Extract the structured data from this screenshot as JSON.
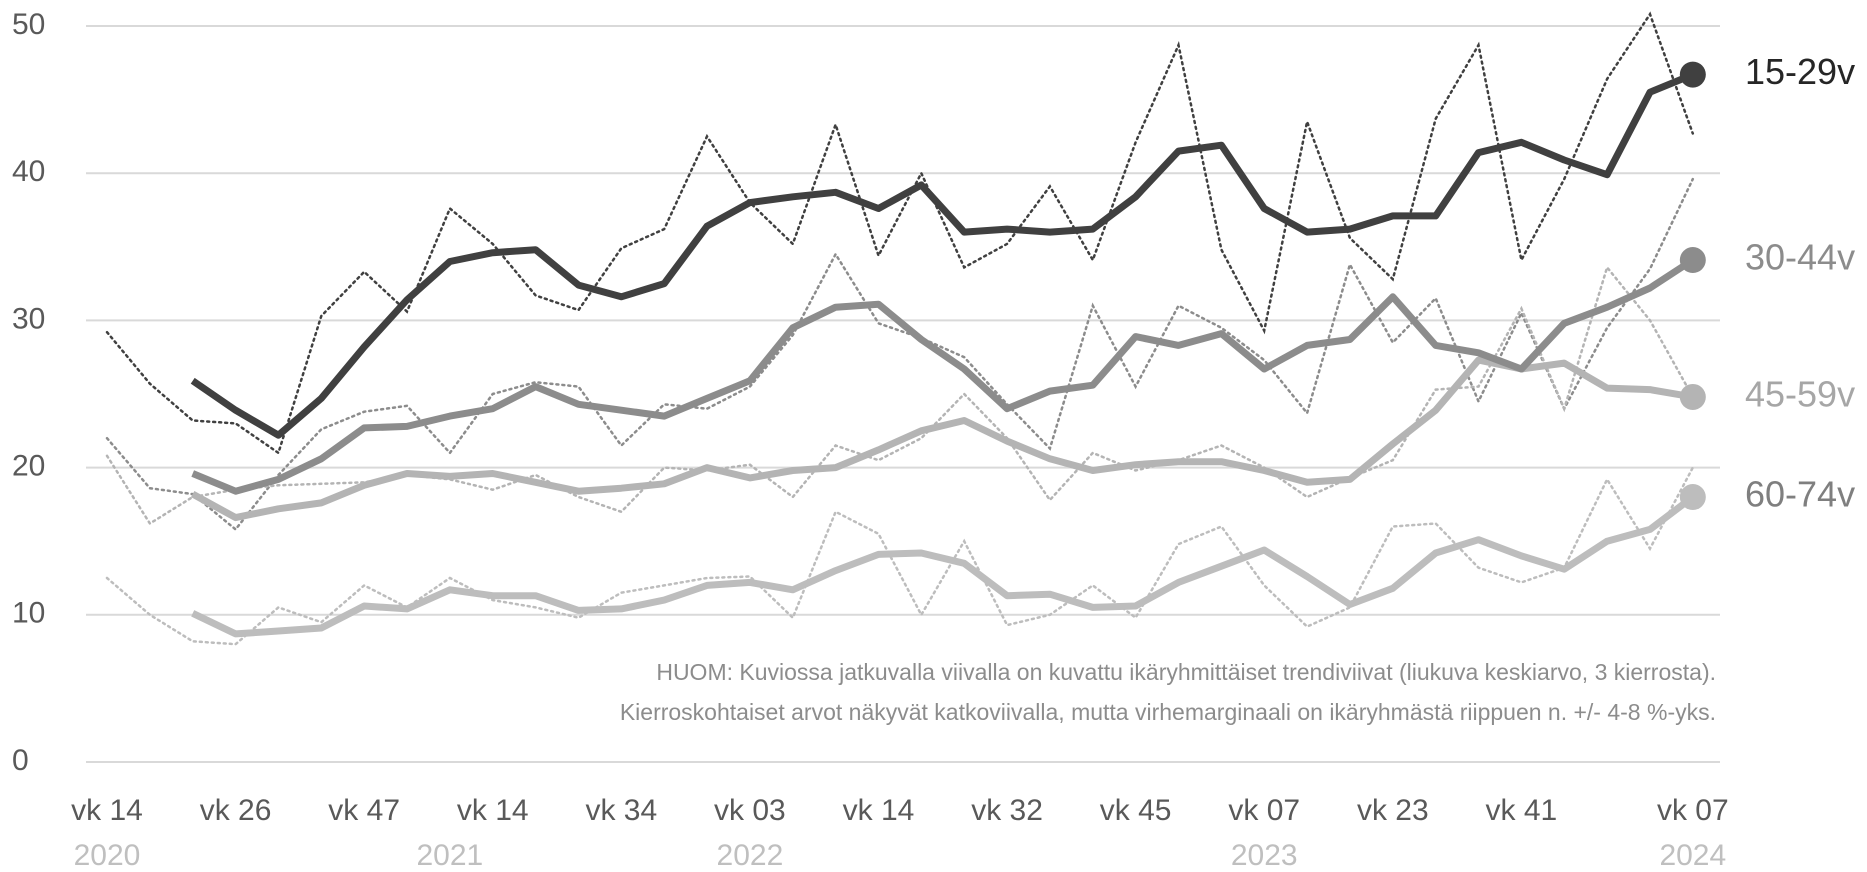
{
  "chart_data": {
    "type": "line",
    "categories": [
      "vk 14",
      null,
      null,
      "vk 26",
      null,
      null,
      "vk 47",
      null,
      null,
      "vk 14",
      null,
      null,
      "vk 34",
      null,
      null,
      "vk 03",
      null,
      null,
      "vk 14",
      null,
      null,
      "vk 32",
      null,
      null,
      "vk 45",
      null,
      null,
      "vk 07",
      null,
      null,
      "vk 23",
      null,
      null,
      "vk 41",
      null,
      null,
      null,
      "vk 07"
    ],
    "years": [
      "2020",
      null,
      null,
      null,
      null,
      null,
      null,
      null,
      "2021",
      null,
      null,
      null,
      null,
      null,
      null,
      "2022",
      null,
      null,
      null,
      null,
      null,
      null,
      null,
      null,
      null,
      null,
      null,
      "2023",
      null,
      null,
      null,
      null,
      null,
      null,
      null,
      null,
      null,
      "2024"
    ],
    "ylim": [
      0,
      50
    ],
    "yticks": [
      0,
      10,
      20,
      30,
      40,
      50
    ],
    "grid": true,
    "note": [
      "HUOM: Kuviossa jatkuvalla viivalla on kuvattu ikäryhmittäiset trendiviivat (liukuva keskiarvo, 3 kierrosta).",
      "Kierroskohtaiset arvot näkyvät katkoviivalla, mutta virhemarginaali on ikäryhmästä riippuen n. +/- 4-8 %-yks."
    ],
    "series": [
      {
        "name": "15-29v",
        "color": "#404040",
        "label_color": "#262626",
        "values": [
          null,
          null,
          25.9,
          23.9,
          22.2,
          24.7,
          28.2,
          31.4,
          34.0,
          34.6,
          34.8,
          32.4,
          31.6,
          32.5,
          36.4,
          38.0,
          38.4,
          38.7,
          37.6,
          39.2,
          36.0,
          36.2,
          36.0,
          36.2,
          38.4,
          41.5,
          41.9,
          37.6,
          36.0,
          36.2,
          37.1,
          37.1,
          41.4,
          42.1,
          40.9,
          39.9,
          45.5,
          46.7
        ],
        "raw_values": [
          29.2,
          25.7,
          23.2,
          23.0,
          21.0,
          30.3,
          33.3,
          30.6,
          37.6,
          35.2,
          31.7,
          30.7,
          34.9,
          36.2,
          42.5,
          38.0,
          35.2,
          43.3,
          34.4,
          40.0,
          33.6,
          35.2,
          39.1,
          34.1,
          42.1,
          48.7,
          34.8,
          29.3,
          43.5,
          35.6,
          32.8,
          43.7,
          48.7,
          34.1,
          39.6,
          46.4,
          50.8,
          42.7
        ]
      },
      {
        "name": "30-44v",
        "color": "#8c8c8c",
        "label_color": "#8c8c8c",
        "values": [
          null,
          null,
          19.6,
          18.4,
          19.2,
          20.6,
          22.7,
          22.8,
          23.5,
          24.0,
          25.5,
          24.3,
          23.9,
          23.5,
          24.7,
          25.9,
          29.5,
          30.9,
          31.1,
          28.7,
          26.7,
          24.0,
          25.2,
          25.6,
          28.9,
          28.3,
          29.1,
          26.7,
          28.3,
          28.7,
          31.6,
          28.3,
          27.8,
          26.7,
          29.8,
          30.9,
          32.2,
          34.1
        ],
        "raw_values": [
          22.0,
          18.6,
          18.2,
          15.8,
          19.5,
          22.6,
          23.8,
          24.2,
          21.0,
          25.0,
          25.8,
          25.5,
          21.5,
          24.3,
          24.0,
          25.5,
          29.0,
          34.5,
          29.8,
          28.8,
          27.5,
          24.3,
          21.3,
          31.0,
          25.5,
          31.0,
          29.5,
          27.3,
          23.7,
          33.8,
          28.5,
          31.5,
          24.5,
          30.5,
          24.0,
          29.5,
          33.5,
          39.6
        ]
      },
      {
        "name": "45-59v",
        "color": "#b4b4b4",
        "label_color": "#a6a6a6",
        "values": [
          null,
          null,
          18.2,
          16.6,
          17.2,
          17.6,
          18.8,
          19.6,
          19.4,
          19.6,
          19.0,
          18.4,
          18.6,
          18.9,
          20.0,
          19.3,
          19.8,
          20.0,
          21.2,
          22.5,
          23.2,
          21.8,
          20.6,
          19.8,
          20.2,
          20.4,
          20.4,
          19.8,
          19.0,
          19.2,
          21.6,
          23.9,
          27.3,
          26.7,
          27.1,
          25.4,
          25.3,
          24.8
        ],
        "raw_values": [
          20.8,
          16.2,
          18.0,
          18.5,
          18.8,
          18.9,
          19.0,
          19.5,
          19.2,
          18.5,
          19.5,
          18.0,
          17.0,
          20.0,
          19.8,
          20.2,
          18.0,
          21.5,
          20.5,
          22.0,
          25.0,
          22.0,
          17.8,
          21.0,
          19.8,
          20.5,
          21.5,
          20.0,
          18.0,
          19.3,
          20.5,
          25.3,
          25.5,
          30.8,
          24.0,
          33.6,
          30.0,
          24.8
        ]
      },
      {
        "name": "60-74v",
        "color": "#bdbdbd",
        "label_color": "#7f7f7f",
        "values": [
          null,
          null,
          10.1,
          8.7,
          8.9,
          9.1,
          10.6,
          10.4,
          11.7,
          11.3,
          11.3,
          10.3,
          10.4,
          11.0,
          12.0,
          12.2,
          11.7,
          13.0,
          14.1,
          14.2,
          13.5,
          11.3,
          11.4,
          10.5,
          10.6,
          12.2,
          13.3,
          14.4,
          12.6,
          10.7,
          11.8,
          14.2,
          15.1,
          14.0,
          13.1,
          15.0,
          15.8,
          18.0
        ],
        "raw_values": [
          12.5,
          10.0,
          8.2,
          8.0,
          10.5,
          9.5,
          12.0,
          10.5,
          12.5,
          11.0,
          10.5,
          9.8,
          11.5,
          12.0,
          12.5,
          12.6,
          9.8,
          17.0,
          15.5,
          10.0,
          15.0,
          9.3,
          10.0,
          12.0,
          9.8,
          14.8,
          16.0,
          12.0,
          9.2,
          10.5,
          16.0,
          16.2,
          13.2,
          12.2,
          13.2,
          19.2,
          14.5,
          20.0
        ]
      }
    ]
  }
}
